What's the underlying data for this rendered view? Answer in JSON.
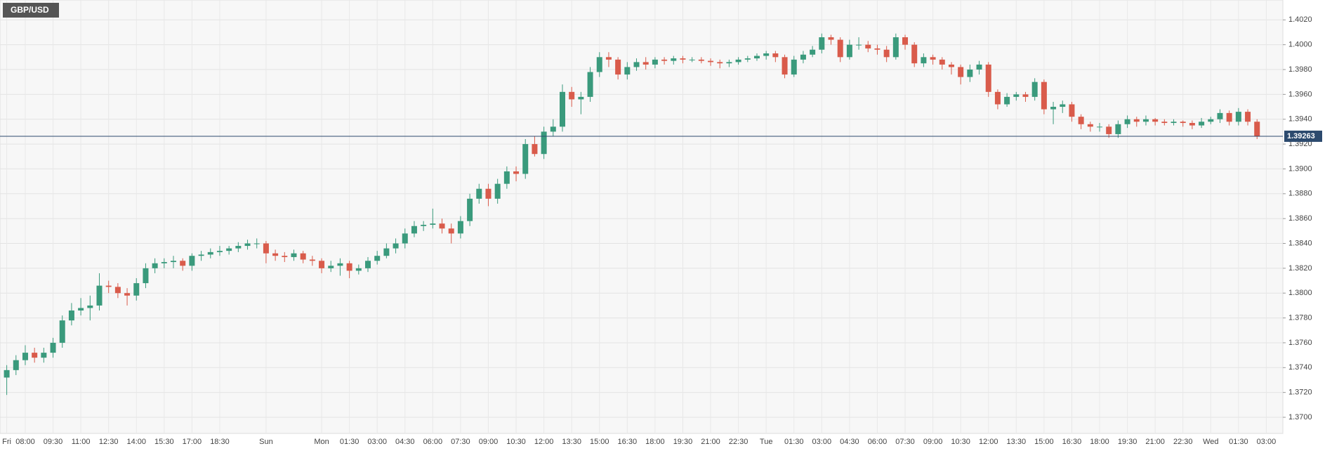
{
  "chart_data": {
    "type": "candlestick",
    "title": "GBP/USD",
    "categories": [
      "Fri",
      null,
      "08:00",
      null,
      null,
      "09:30",
      null,
      null,
      "11:00",
      null,
      null,
      "12:30",
      null,
      null,
      "14:00",
      null,
      null,
      "15:30",
      null,
      null,
      "17:00",
      null,
      null,
      "18:30",
      null,
      null,
      null,
      null,
      "Sun",
      null,
      null,
      null,
      null,
      null,
      "Mon",
      null,
      null,
      "01:30",
      null,
      null,
      "03:00",
      null,
      null,
      "04:30",
      null,
      null,
      "06:00",
      null,
      null,
      "07:30",
      null,
      null,
      "09:00",
      null,
      null,
      "10:30",
      null,
      null,
      "12:00",
      null,
      null,
      "13:30",
      null,
      null,
      "15:00",
      null,
      null,
      "16:30",
      null,
      null,
      "18:00",
      null,
      null,
      "19:30",
      null,
      null,
      "21:00",
      null,
      null,
      "22:30",
      null,
      null,
      "Tue",
      null,
      null,
      "01:30",
      null,
      null,
      "03:00",
      null,
      null,
      "04:30",
      null,
      null,
      "06:00",
      null,
      null,
      "07:30",
      null,
      null,
      "09:00",
      null,
      null,
      "10:30",
      null,
      null,
      "12:00",
      null,
      null,
      "13:30",
      null,
      null,
      "15:00",
      null,
      null,
      "16:30",
      null,
      null,
      "18:00",
      null,
      null,
      "19:30",
      null,
      null,
      "21:00",
      null,
      null,
      "22:30",
      null,
      null,
      "Wed",
      null,
      null,
      "01:30",
      null,
      null,
      "03:00"
    ],
    "open": [
      1.3732,
      1.3738,
      1.3746,
      1.3752,
      1.3748,
      1.3752,
      1.376,
      1.3778,
      1.3786,
      1.3788,
      1.379,
      1.3806,
      1.3805,
      1.38,
      1.3798,
      1.3808,
      1.382,
      1.3824,
      1.3825,
      1.3826,
      1.3822,
      1.383,
      1.3831,
      1.3833,
      1.3834,
      1.3836,
      1.3838,
      1.384,
      1.384,
      1.3832,
      1.383,
      1.3829,
      1.3832,
      1.3827,
      1.3826,
      1.382,
      1.3822,
      1.3824,
      1.3818,
      1.382,
      1.3826,
      1.383,
      1.3836,
      1.384,
      1.3848,
      1.3854,
      1.3855,
      1.3856,
      1.3852,
      1.3848,
      1.3858,
      1.3876,
      1.3884,
      1.3876,
      1.3888,
      1.3898,
      1.3896,
      1.392,
      1.3912,
      1.393,
      1.3934,
      1.3962,
      1.3956,
      1.3958,
      1.3978,
      1.399,
      1.3988,
      1.3976,
      1.3982,
      1.3986,
      1.3984,
      1.3988,
      1.3987,
      1.3989,
      1.3988,
      1.3988,
      1.3987,
      1.3986,
      1.3985,
      1.3986,
      1.3988,
      1.3989,
      1.3991,
      1.3993,
      1.399,
      1.3976,
      1.3988,
      1.3992,
      1.3996,
      1.4006,
      1.4004,
      1.399,
      1.4,
      1.4,
      1.3997,
      1.3996,
      1.399,
      1.4006,
      1.4,
      1.3985,
      1.399,
      1.3988,
      1.3984,
      1.3982,
      1.3974,
      1.398,
      1.3984,
      1.3962,
      1.3952,
      1.3958,
      1.396,
      1.3958,
      1.397,
      1.3948,
      1.395,
      1.3952,
      1.3942,
      1.3936,
      1.3934,
      1.3934,
      1.3928,
      1.3936,
      1.394,
      1.3938,
      1.394,
      1.3938,
      1.3937,
      1.3938,
      1.3937,
      1.3935,
      1.3938,
      1.394,
      1.3945,
      1.3938,
      1.3946,
      1.3938,
      null
    ],
    "high": [
      1.3742,
      1.375,
      1.3758,
      1.3756,
      1.3756,
      1.3764,
      1.3782,
      1.3792,
      1.3796,
      1.3798,
      1.3816,
      1.381,
      1.3808,
      1.3804,
      1.3812,
      1.3824,
      1.3828,
      1.3828,
      1.383,
      1.3828,
      1.3832,
      1.3834,
      1.3836,
      1.3838,
      1.3838,
      1.3841,
      1.3843,
      1.3844,
      1.3842,
      1.3835,
      1.3833,
      1.3835,
      1.3834,
      1.383,
      1.3828,
      1.3826,
      1.3828,
      1.3826,
      1.3823,
      1.3829,
      1.3834,
      1.384,
      1.3844,
      1.3852,
      1.3858,
      1.3858,
      1.3868,
      1.386,
      1.3856,
      1.3862,
      1.388,
      1.3888,
      1.3888,
      1.3892,
      1.3902,
      1.3902,
      1.3924,
      1.3926,
      1.3934,
      1.394,
      1.3968,
      1.3966,
      1.3962,
      1.3982,
      1.3994,
      1.3994,
      1.399,
      1.3986,
      1.3989,
      1.399,
      1.399,
      1.399,
      1.3991,
      1.3991,
      1.399,
      1.399,
      1.3989,
      1.3988,
      1.3988,
      1.399,
      1.3991,
      1.3993,
      1.3995,
      1.3995,
      1.3992,
      1.3991,
      1.3995,
      1.3999,
      1.4009,
      1.4008,
      1.4006,
      1.4004,
      1.4006,
      1.4003,
      1.4,
      1.3999,
      1.4009,
      1.4008,
      1.4002,
      1.3993,
      1.3992,
      1.399,
      1.3986,
      1.3984,
      1.3984,
      1.3987,
      1.3986,
      1.3964,
      1.3961,
      1.3962,
      1.3962,
      1.3973,
      1.3972,
      1.3954,
      1.3955,
      1.3954,
      1.3944,
      1.3938,
      1.3937,
      1.3936,
      1.3939,
      1.3943,
      1.3942,
      1.3943,
      1.3941,
      1.394,
      1.394,
      1.3939,
      1.3939,
      1.3941,
      1.3942,
      1.3948,
      1.3947,
      1.3949,
      1.3948,
      1.394,
      null
    ],
    "low": [
      1.3718,
      1.3734,
      1.3742,
      1.3744,
      1.3744,
      1.3748,
      1.3756,
      1.3774,
      1.3782,
      1.3778,
      1.3786,
      1.38,
      1.3796,
      1.379,
      1.3794,
      1.3804,
      1.3816,
      1.382,
      1.382,
      1.3818,
      1.3818,
      1.3826,
      1.3828,
      1.383,
      1.3831,
      1.3833,
      1.3835,
      1.3836,
      1.3824,
      1.3826,
      1.3825,
      1.3826,
      1.3824,
      1.3822,
      1.3816,
      1.3817,
      1.3814,
      1.3812,
      1.3815,
      1.3817,
      1.3823,
      1.3828,
      1.3832,
      1.3836,
      1.3845,
      1.385,
      1.3852,
      1.3848,
      1.384,
      1.3844,
      1.3854,
      1.3872,
      1.387,
      1.3872,
      1.3884,
      1.389,
      1.3892,
      1.391,
      1.3908,
      1.3926,
      1.393,
      1.395,
      1.3944,
      1.3954,
      1.3974,
      1.3982,
      1.3972,
      1.3972,
      1.3979,
      1.398,
      1.3981,
      1.3984,
      1.3984,
      1.3985,
      1.3986,
      1.3985,
      1.3983,
      1.3981,
      1.3982,
      1.3984,
      1.3986,
      1.3987,
      1.3988,
      1.3986,
      1.3973,
      1.3974,
      1.3985,
      1.399,
      1.3993,
      1.4,
      1.3986,
      1.3988,
      1.3996,
      1.3994,
      1.3992,
      1.3986,
      1.3988,
      1.3996,
      1.3982,
      1.3982,
      1.3984,
      1.398,
      1.3976,
      1.3968,
      1.397,
      1.3976,
      1.3958,
      1.3948,
      1.395,
      1.3955,
      1.3954,
      1.3955,
      1.3944,
      1.3936,
      1.3945,
      1.3938,
      1.3932,
      1.393,
      1.393,
      1.3925,
      1.3925,
      1.3933,
      1.3934,
      1.3935,
      1.3935,
      1.3935,
      1.3935,
      1.3934,
      1.3932,
      1.3933,
      1.3936,
      1.3937,
      1.3935,
      1.3935,
      1.3935,
      1.3924,
      null
    ],
    "close": [
      1.3738,
      1.3746,
      1.3752,
      1.3748,
      1.3752,
      1.376,
      1.3778,
      1.3786,
      1.3788,
      1.379,
      1.3806,
      1.3805,
      1.38,
      1.3798,
      1.3808,
      1.382,
      1.3824,
      1.3825,
      1.3826,
      1.3822,
      1.383,
      1.3831,
      1.3833,
      1.3834,
      1.3836,
      1.3838,
      1.384,
      1.384,
      1.3832,
      1.383,
      1.3829,
      1.3832,
      1.3827,
      1.3826,
      1.382,
      1.3822,
      1.3824,
      1.3818,
      1.382,
      1.3826,
      1.383,
      1.3836,
      1.384,
      1.3848,
      1.3854,
      1.3855,
      1.3856,
      1.3852,
      1.3848,
      1.3858,
      1.3876,
      1.3884,
      1.3876,
      1.3888,
      1.3898,
      1.3896,
      1.392,
      1.3912,
      1.393,
      1.3934,
      1.3962,
      1.3956,
      1.3958,
      1.3978,
      1.399,
      1.3988,
      1.3976,
      1.3982,
      1.3986,
      1.3984,
      1.3988,
      1.3987,
      1.3989,
      1.3988,
      1.3988,
      1.3987,
      1.3986,
      1.3985,
      1.3986,
      1.3988,
      1.3989,
      1.3991,
      1.3993,
      1.399,
      1.3976,
      1.3988,
      1.3992,
      1.3996,
      1.4006,
      1.4004,
      1.399,
      1.4,
      1.4,
      1.3997,
      1.3996,
      1.399,
      1.4006,
      1.4,
      1.3985,
      1.399,
      1.3988,
      1.3984,
      1.3982,
      1.3974,
      1.398,
      1.3984,
      1.3962,
      1.3952,
      1.3958,
      1.396,
      1.3958,
      1.397,
      1.3948,
      1.395,
      1.3952,
      1.3942,
      1.3936,
      1.3934,
      1.3934,
      1.3928,
      1.3936,
      1.394,
      1.3938,
      1.394,
      1.3938,
      1.3937,
      1.3938,
      1.3937,
      1.3935,
      1.3938,
      1.394,
      1.3945,
      1.3938,
      1.3946,
      1.3938,
      1.3926,
      null
    ],
    "up_color": "#3a9a7c",
    "down_color": "#d95b4b",
    "ylim": [
      1.3687,
      1.4036
    ],
    "yticks": [
      {
        "value": 1.37,
        "label": "1.3700"
      },
      {
        "value": 1.372,
        "label": "1.3720"
      },
      {
        "value": 1.374,
        "label": "1.3740"
      },
      {
        "value": 1.376,
        "label": "1.3760"
      },
      {
        "value": 1.378,
        "label": "1.3780"
      },
      {
        "value": 1.38,
        "label": "1.3800"
      },
      {
        "value": 1.382,
        "label": "1.3820"
      },
      {
        "value": 1.384,
        "label": "1.3840"
      },
      {
        "value": 1.386,
        "label": "1.3860"
      },
      {
        "value": 1.388,
        "label": "1.3880"
      },
      {
        "value": 1.39,
        "label": "1.3900"
      },
      {
        "value": 1.392,
        "label": "1.3920"
      },
      {
        "value": 1.394,
        "label": "1.3940"
      },
      {
        "value": 1.396,
        "label": "1.3960"
      },
      {
        "value": 1.398,
        "label": "1.3980"
      },
      {
        "value": 1.4,
        "label": "1.4000"
      },
      {
        "value": 1.402,
        "label": "1.4020"
      }
    ],
    "last_price": 1.39263,
    "last_price_color": "#2c4a6e",
    "grid": true
  }
}
